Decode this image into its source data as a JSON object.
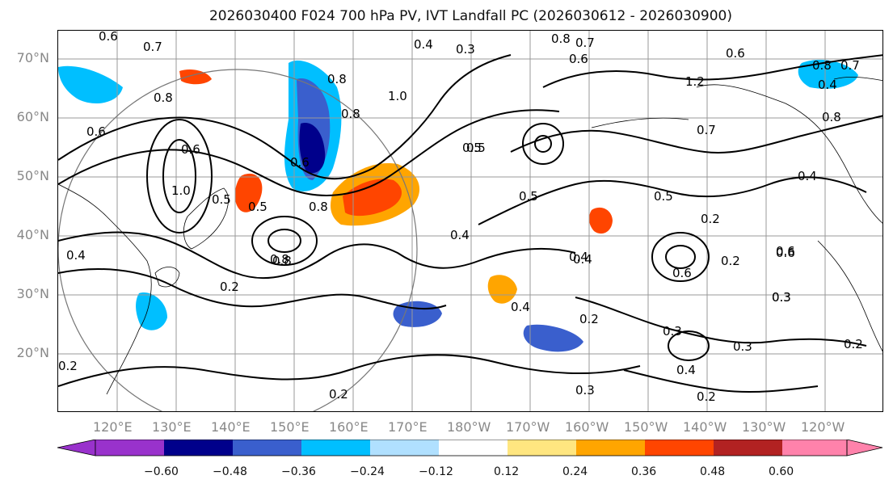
{
  "title": "2026030400 F024 700 hPa PV, IVT Landfall PC (2026030612 - 2026030900)",
  "lat_labels": [
    "70°N",
    "60°N",
    "50°N",
    "40°N",
    "30°N",
    "20°N"
  ],
  "lon_labels": [
    "120°E",
    "130°E",
    "140°E",
    "150°E",
    "160°E",
    "170°E",
    "180°W",
    "170°W",
    "160°W",
    "150°W",
    "140°W",
    "130°W",
    "120°W"
  ],
  "contour_labels": [
    "0.6",
    "0.7",
    "0.4",
    "0.3",
    "0.8",
    "0.7",
    "0.6",
    "0.8",
    "1.0",
    "0.8",
    "0.6",
    "0.5",
    "0.4",
    "1.0",
    "0.8",
    "0.6",
    "0.5",
    "0.8",
    "0.6",
    "0.5",
    "0.4",
    "0.2",
    "0.8",
    "0.7",
    "0.6",
    "0.8",
    "0.4",
    "0.5",
    "0.2",
    "0.5",
    "0.2",
    "0.6",
    "0.3",
    "0.4",
    "0.2",
    "0.4",
    "0.3",
    "0.4",
    "0.3",
    "0.2",
    "0.3",
    "0.2",
    "0.2",
    "1.2",
    "0.8",
    "0.7",
    "0.4",
    "0.2",
    "0.6",
    "0.4",
    "0.8",
    "0.5",
    "0.6",
    "0.3"
  ],
  "colorbar": {
    "ticks": [
      "−0.60",
      "−0.48",
      "−0.36",
      "−0.24",
      "−0.12",
      "0.12",
      "0.24",
      "0.36",
      "0.48",
      "0.60"
    ],
    "colors": [
      "#9932cc",
      "#00008b",
      "#3a5fcd",
      "#00bfff",
      "#b0e0ff",
      "#ffffff",
      "#ffe680",
      "#ffa500",
      "#ff4500",
      "#b22222",
      "#ff82ab"
    ]
  }
}
